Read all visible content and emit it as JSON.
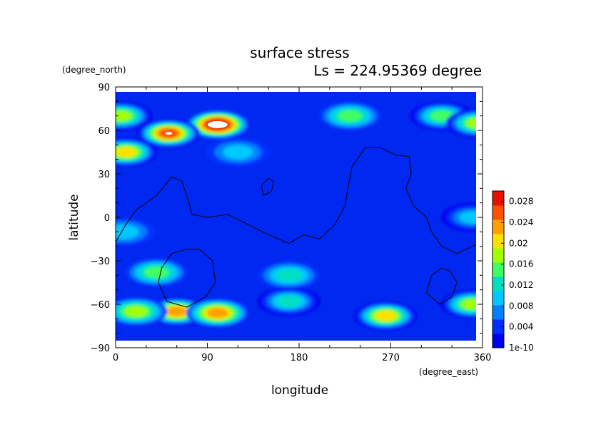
{
  "chart_data": {
    "type": "heatmap",
    "title": "surface stress",
    "subtitle": "Ls = 224.95369 degree",
    "xlabel": "longitude",
    "ylabel": "latitude",
    "x_unit": "(degree_east)",
    "y_unit": "(degree_north)",
    "xlim": [
      0,
      360
    ],
    "ylim": [
      -90,
      90
    ],
    "x_ticks": [
      "0",
      "90",
      "180",
      "270",
      "360"
    ],
    "y_ticks": [
      "90",
      "60",
      "30",
      "0",
      "−30",
      "−60",
      "−90"
    ],
    "x_tick_values": [
      0,
      90,
      180,
      270,
      360
    ],
    "y_tick_values": [
      90,
      60,
      30,
      0,
      -30,
      -60,
      -90
    ],
    "colorbar": {
      "ticks": [
        "0.028",
        "0.024",
        "0.02",
        "0.016",
        "0.012",
        "0.008",
        "0.004",
        "1e-10"
      ],
      "tick_values": [
        0.028,
        0.024,
        0.02,
        0.016,
        0.012,
        0.008,
        0.004,
        1e-10
      ],
      "range": [
        1e-10,
        0.03
      ],
      "colors": [
        "#0000f0",
        "#0030ff",
        "#0080ff",
        "#00c8ff",
        "#00e0c0",
        "#40ff60",
        "#a0ff00",
        "#ffe000",
        "#ffa000",
        "#ff5000",
        "#e81000"
      ]
    },
    "highlights": [
      {
        "lon": 100,
        "lat": 64,
        "value": 0.031,
        "color": "#ffffff"
      },
      {
        "lon": 52,
        "lat": 58,
        "value": 0.029,
        "color": "#ffffff"
      }
    ],
    "hotspots": [
      {
        "lon": 100,
        "lat": 64,
        "value": 0.03
      },
      {
        "lon": 52,
        "lat": 58,
        "value": 0.027
      },
      {
        "lon": 10,
        "lat": 45,
        "value": 0.021
      },
      {
        "lon": 5,
        "lat": 70,
        "value": 0.018
      },
      {
        "lon": 230,
        "lat": 70,
        "value": 0.014
      },
      {
        "lon": 320,
        "lat": 70,
        "value": 0.015
      },
      {
        "lon": 355,
        "lat": 65,
        "value": 0.018
      },
      {
        "lon": 60,
        "lat": -65,
        "value": 0.024
      },
      {
        "lon": 100,
        "lat": -66,
        "value": 0.022
      },
      {
        "lon": 20,
        "lat": -65,
        "value": 0.017
      },
      {
        "lon": 265,
        "lat": -68,
        "value": 0.021
      },
      {
        "lon": 350,
        "lat": -60,
        "value": 0.018
      },
      {
        "lon": 40,
        "lat": -38,
        "value": 0.014
      },
      {
        "lon": 170,
        "lat": -40,
        "value": 0.012
      },
      {
        "lon": 170,
        "lat": -58,
        "value": 0.013
      },
      {
        "lon": 120,
        "lat": 45,
        "value": 0.009
      },
      {
        "lon": 350,
        "lat": 0,
        "value": 0.01
      },
      {
        "lon": 8,
        "lat": -10,
        "value": 0.009
      }
    ],
    "contours": [
      [
        [
          0,
          -17
        ],
        [
          10,
          -5
        ],
        [
          20,
          5
        ],
        [
          40,
          15
        ],
        [
          55,
          28
        ],
        [
          65,
          25
        ],
        [
          72,
          10
        ],
        [
          75,
          2
        ],
        [
          90,
          0
        ],
        [
          110,
          2
        ],
        [
          130,
          -5
        ],
        [
          150,
          -12
        ],
        [
          170,
          -18
        ],
        [
          185,
          -12
        ],
        [
          200,
          -15
        ],
        [
          215,
          -5
        ],
        [
          225,
          8
        ],
        [
          228,
          20
        ],
        [
          232,
          35
        ],
        [
          245,
          48
        ],
        [
          260,
          48
        ],
        [
          275,
          43
        ],
        [
          288,
          42
        ],
        [
          290,
          30
        ],
        [
          285,
          20
        ],
        [
          292,
          8
        ],
        [
          305,
          0
        ],
        [
          310,
          -10
        ],
        [
          320,
          -20
        ],
        [
          335,
          -25
        ],
        [
          350,
          -20
        ],
        [
          360,
          -17
        ]
      ],
      [
        [
          70,
          -22
        ],
        [
          55,
          -25
        ],
        [
          45,
          -35
        ],
        [
          42,
          -45
        ],
        [
          50,
          -58
        ],
        [
          70,
          -62
        ],
        [
          88,
          -55
        ],
        [
          98,
          -45
        ],
        [
          95,
          -30
        ],
        [
          82,
          -22
        ],
        [
          70,
          -22
        ]
      ],
      [
        [
          150,
          27
        ],
        [
          143,
          22
        ],
        [
          145,
          15
        ],
        [
          153,
          18
        ],
        [
          155,
          25
        ],
        [
          150,
          27
        ]
      ],
      [
        [
          320,
          -35
        ],
        [
          310,
          -40
        ],
        [
          305,
          -52
        ],
        [
          318,
          -60
        ],
        [
          330,
          -55
        ],
        [
          335,
          -45
        ],
        [
          328,
          -37
        ],
        [
          320,
          -35
        ]
      ]
    ]
  }
}
